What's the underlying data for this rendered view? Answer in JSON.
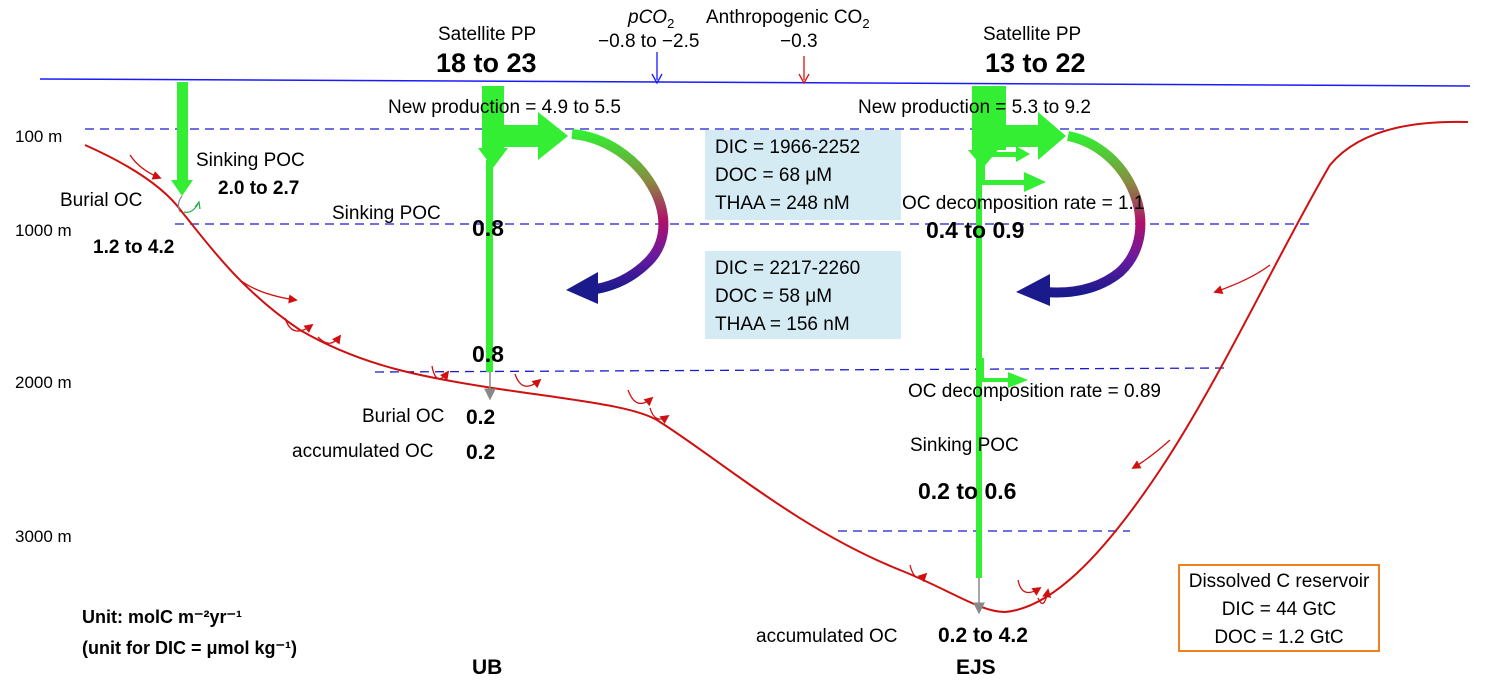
{
  "depths": [
    "100 m",
    "1000 m",
    "2000 m",
    "3000 m"
  ],
  "top": {
    "pco2_label": "pCO",
    "pco2_sub": "2",
    "pco2_value": "−0.8 to −2.5",
    "anthro_label": "Anthropogenic CO",
    "anthro_sub": "2",
    "anthro_value": "−0.3"
  },
  "ub": {
    "sat_label": "Satellite PP",
    "sat_value": "18 to 23",
    "new_production": "New production = 4.9 to 5.5",
    "shelf_sinking_label": "Sinking POC",
    "shelf_sinking_value": "2.0 to 2.7",
    "shelf_burial_label": "Burial OC",
    "shelf_burial_value": "1.2 to 4.2",
    "sinking_label": "Sinking POC",
    "flux_1000": "0.8",
    "flux_2000": "0.8",
    "burial_label": "Burial OC",
    "burial_value": "0.2",
    "accum_label": "accumulated OC",
    "accum_value": "0.2",
    "basin_label": "UB"
  },
  "ejs": {
    "sat_label": "Satellite PP",
    "sat_value": "13 to 22",
    "new_production": "New production = 5.3 to 9.2",
    "decomp1": "OC decomposition rate = 1.1",
    "decomp1_value": "0.4 to 0.9",
    "decomp2": "OC decomposition rate = 0.89",
    "sinking_label": "Sinking POC",
    "sinking_value": "0.2 to 0.6",
    "accum_label": "accumulated OC",
    "accum_value": "0.2 to 4.2",
    "basin_label": "EJS"
  },
  "upper_box": [
    "DIC = 1966-2252",
    "DOC = 68 μM",
    "THAA = 248 nM"
  ],
  "lower_box": [
    "DIC = 2217-2260",
    "DOC = 58 μM",
    "THAA = 156 nM"
  ],
  "reservoir": {
    "title": "Dissolved C reservoir",
    "dic": "DIC = 44 GtC",
    "doc": "DOC = 1.2 GtC"
  },
  "units": {
    "line1": "Unit: molC m⁻²yr⁻¹",
    "line2": "(unit for DIC = μmol kg⁻¹)"
  },
  "colors": {
    "surface": "#1a1aff",
    "depth_lines": "#1a1acc",
    "seafloor": "#d01010",
    "flux": "#33ee33",
    "box_fill": "#d5ebf3",
    "reservoir_border": "#f08020"
  }
}
